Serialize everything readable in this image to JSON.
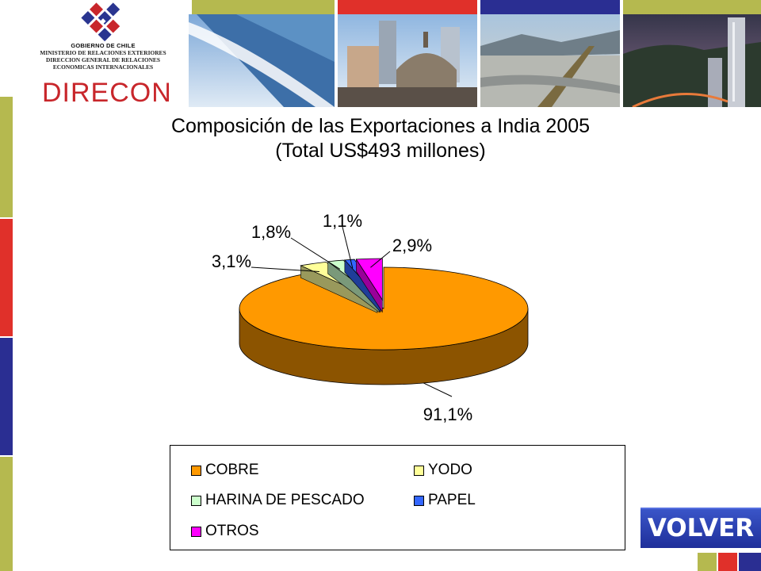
{
  "header": {
    "gobierno": "GOBIERNO DE CHILE",
    "ministry_lines": [
      "MINISTERIO DE RELACIONES EXTERIORES",
      "DIRECCION GENERAL DE RELACIONES",
      "ECONOMICAS INTERNACIONALES"
    ],
    "brand": "DIRECON"
  },
  "chart_data": {
    "type": "pie",
    "title": "Composición de las Exportaciones a India 2005",
    "subtitle": "(Total US$493 millones)",
    "categories": [
      "COBRE",
      "YODO",
      "HARINA DE PESCADO",
      "PAPEL",
      "OTROS"
    ],
    "values": [
      91.1,
      3.1,
      1.8,
      1.1,
      2.9
    ],
    "data_labels": [
      "91,1%",
      "3,1%",
      "1,8%",
      "1,1%",
      "2,9%"
    ],
    "colors": [
      "#ff9900",
      "#ffff99",
      "#ccffcc",
      "#3366ff",
      "#ff00ff"
    ],
    "three_d": true,
    "exploded": true,
    "legend_position": "bottom"
  },
  "volver_label": "VOLVER",
  "colors": {
    "olive": "#b5b94f",
    "red": "#e0302a",
    "navy": "#2a2e92",
    "brand_red": "#c8262b"
  }
}
